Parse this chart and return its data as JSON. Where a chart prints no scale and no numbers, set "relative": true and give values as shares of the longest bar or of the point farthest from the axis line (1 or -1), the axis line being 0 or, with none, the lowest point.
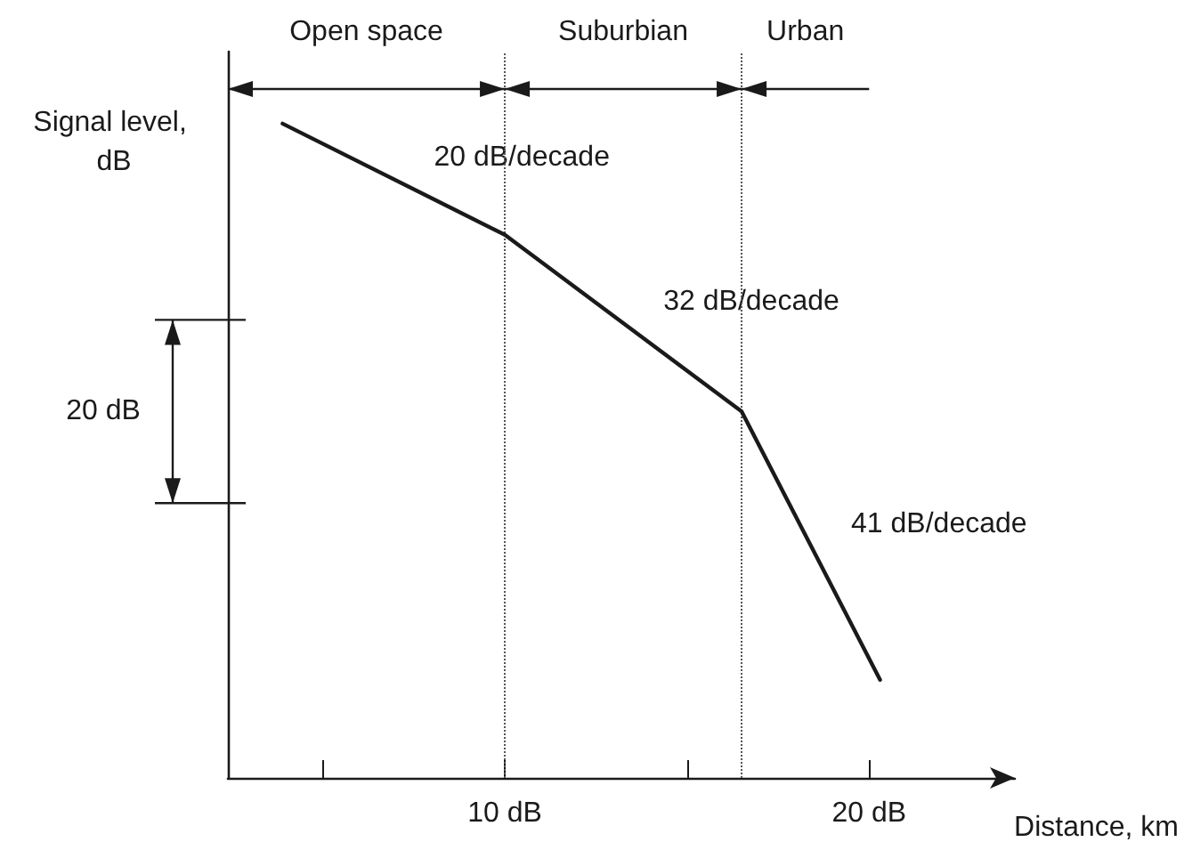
{
  "chart_data": {
    "type": "line",
    "relative": true,
    "ylabel": "Signal level, dB",
    "xlabel": "Distance, km",
    "x": [
      3.9,
      10,
      16.5,
      20.3
    ],
    "series": [
      {
        "color": "#1a1a1a",
        "values": [
          1,
          0.83,
          0.56,
          0.15
        ]
      }
    ],
    "xlim": [
      2.4,
      24
    ],
    "xticks": [
      {
        "value": 5,
        "label": null
      },
      {
        "value": 10,
        "label": "10 dB"
      },
      {
        "value": 15,
        "label": null
      },
      {
        "value": 20,
        "label": "20 dB"
      }
    ],
    "ref_lines": [
      {
        "axis": "x",
        "value": 10,
        "color": "#555555",
        "line_style": "dotted"
      },
      {
        "axis": "x",
        "value": 16.5,
        "color": "#555555",
        "line_style": "dotted"
      }
    ],
    "annotations": [
      "Open space",
      "Suburbian",
      "Urban",
      "20 dB/decade",
      "32 dB/decade",
      "41 dB/decade",
      "20 dB"
    ],
    "grid": false,
    "marker": "none",
    "line_style": "solid"
  }
}
